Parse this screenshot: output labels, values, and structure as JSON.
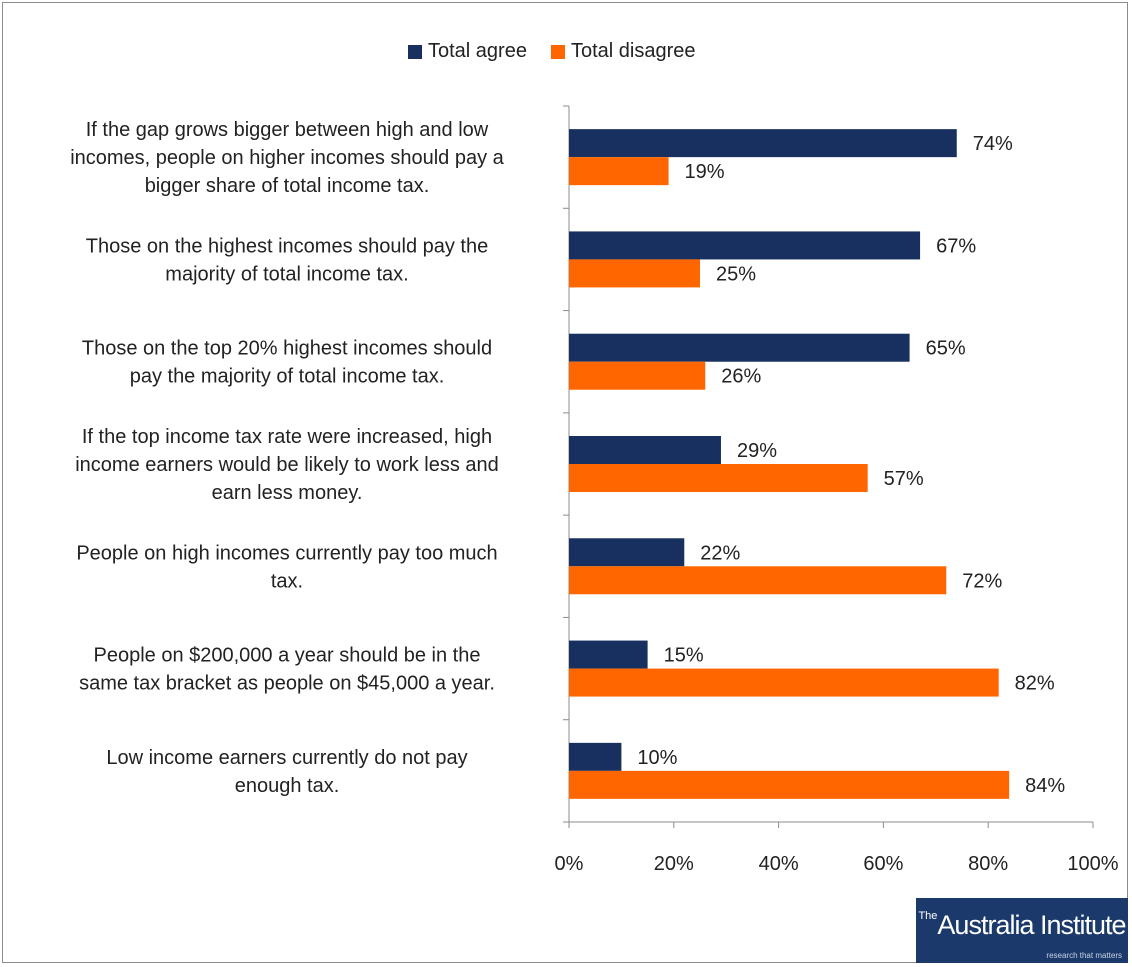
{
  "chart_data": {
    "type": "bar",
    "orientation": "horizontal",
    "categories": [
      [
        "If the gap grows bigger between high and low",
        "incomes, people on higher incomes should pay a",
        "bigger share of total income tax."
      ],
      [
        "Those on the highest incomes should pay the",
        "majority of total income tax."
      ],
      [
        "Those on the top 20% highest incomes should",
        "pay the majority of total income tax."
      ],
      [
        "If the top income tax rate were increased, high",
        "income earners would be likely to work less and",
        "earn less money."
      ],
      [
        "People on high incomes currently pay too much",
        "tax."
      ],
      [
        "People on $200,000 a year should be in the",
        "same tax bracket as people on $45,000 a year."
      ],
      [
        "Low income earners currently do not pay",
        "enough tax."
      ]
    ],
    "series": [
      {
        "name": "Total agree",
        "color": "#17305f",
        "values": [
          74,
          67,
          65,
          29,
          22,
          15,
          10
        ]
      },
      {
        "name": "Total disagree",
        "color": "#ff6600",
        "values": [
          19,
          25,
          26,
          57,
          72,
          82,
          84
        ]
      }
    ],
    "xlim": [
      0,
      100
    ],
    "xticks": [
      0,
      20,
      40,
      60,
      80,
      100
    ],
    "tick_labels": [
      "0%",
      "20%",
      "40%",
      "60%",
      "80%",
      "100%"
    ],
    "value_suffix": "%",
    "legend_position": "top",
    "grid": false
  },
  "logo": {
    "text": "Australia Institute",
    "prefix": "The",
    "tagline": "research that matters"
  }
}
